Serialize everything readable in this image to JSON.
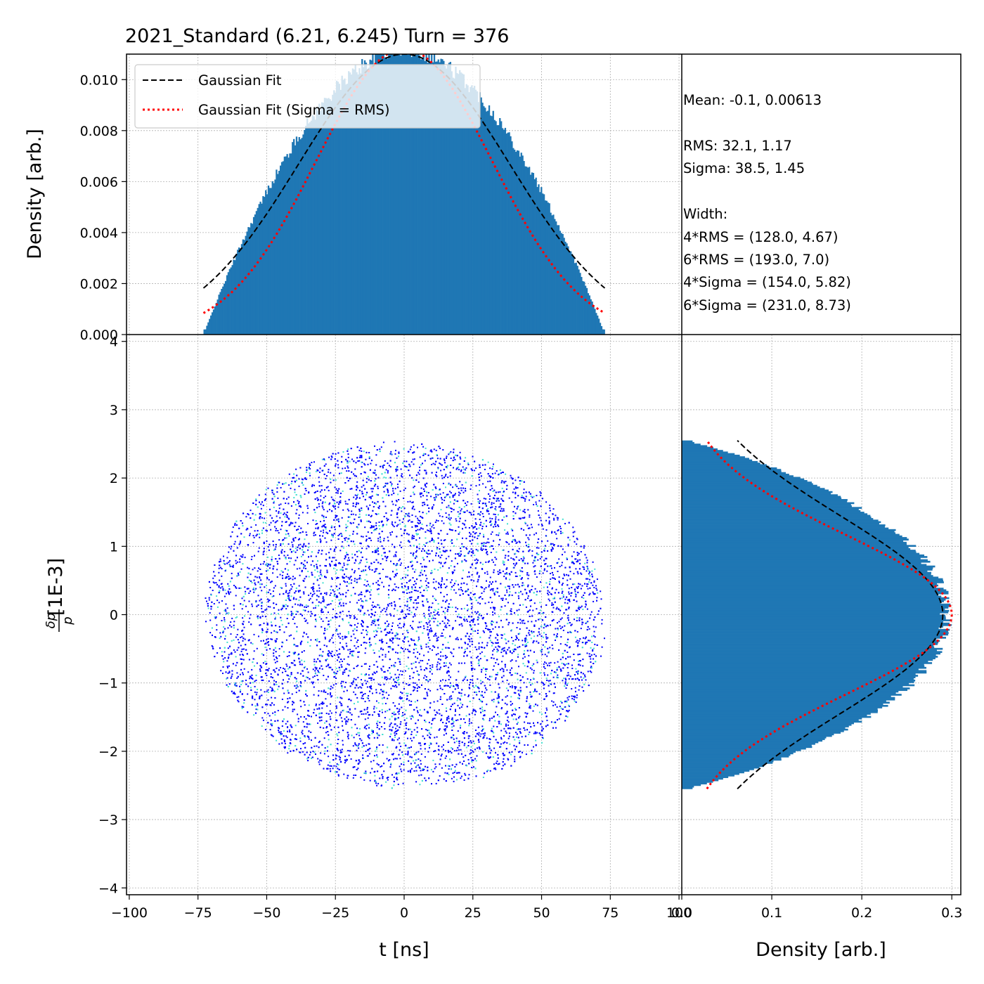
{
  "title": "2021_Standard (6.21, 6.245) Turn = 376",
  "stats": {
    "mean": "Mean: -0.1, 0.00613",
    "rms": "RMS: 32.1, 1.17",
    "sigma": "Sigma: 38.5, 1.45",
    "width_header": "Width:",
    "rms4": "4*RMS = (128.0, 4.67)",
    "rms6": "6*RMS = (193.0, 7.0)",
    "sigma4": "4*Sigma = (154.0, 5.82)",
    "sigma6": "6*Sigma = (231.0, 8.73)"
  },
  "legend": {
    "gauss_fit": "Gaussian Fit",
    "gauss_fit_rms": "Gaussian Fit (Sigma = RMS)"
  },
  "colors": {
    "histogram": "#1f77b4",
    "gauss_fit": "#000000",
    "gauss_fit_rms": "#ff0000",
    "scatter_low": "#0000ff",
    "scatter_high": "#40e0d0"
  },
  "chart_data": [
    {
      "type": "bar",
      "name": "top_histogram",
      "ylabel": "Density [arb.]",
      "xlim": [
        -100,
        100
      ],
      "ylim": [
        0,
        0.011
      ],
      "yticks": [
        "0.000",
        "0.002",
        "0.004",
        "0.006",
        "0.008",
        "0.010"
      ],
      "grid": true,
      "legend_position": "upper-left",
      "histogram_range": [
        -73,
        73
      ],
      "approx_peak_density": 0.011,
      "series": [
        {
          "name": "Gaussian Fit",
          "style": "dashed",
          "mean": 0,
          "sigma": 38.5,
          "amplitude": 0.011,
          "x_range": [
            -73,
            73
          ]
        },
        {
          "name": "Gaussian Fit (Sigma = RMS)",
          "style": "dotted",
          "mean": 0,
          "sigma": 32.1,
          "amplitude": 0.0112,
          "x_range": [
            -73,
            73
          ]
        }
      ]
    },
    {
      "type": "heatmap",
      "name": "phase_space",
      "xlabel": "t [ns]",
      "ylabel": "δp/p [1E-3]",
      "xlim": [
        -101,
        101
      ],
      "ylim": [
        -4.1,
        4.1
      ],
      "xticks": [
        "−100",
        "−75",
        "−50",
        "−25",
        "0",
        "25",
        "50",
        "75",
        "100"
      ],
      "yticks": [
        "−4",
        "−3",
        "−2",
        "−1",
        "0",
        "1",
        "2",
        "3",
        "4"
      ],
      "grid": true,
      "distribution_extent": {
        "t_min": -73,
        "t_max": 73,
        "dp_min": -2.55,
        "dp_max": 2.55
      }
    },
    {
      "type": "bar",
      "name": "side_histogram",
      "orientation": "horizontal",
      "xlabel": "Density [arb.]",
      "xlim": [
        0,
        0.31
      ],
      "xticks": [
        "0.0",
        "0.1",
        "0.2",
        "0.3"
      ],
      "grid": true,
      "histogram_range": [
        -2.55,
        2.55
      ],
      "approx_peak_density": 0.3,
      "series": [
        {
          "name": "Gaussian Fit",
          "style": "dashed",
          "mean": 0,
          "sigma": 1.45,
          "amplitude": 0.29,
          "y_range": [
            -2.55,
            2.55
          ]
        },
        {
          "name": "Gaussian Fit (Sigma = RMS)",
          "style": "dotted",
          "mean": 0,
          "sigma": 1.17,
          "amplitude": 0.3,
          "y_range": [
            -2.55,
            2.55
          ]
        }
      ]
    }
  ]
}
